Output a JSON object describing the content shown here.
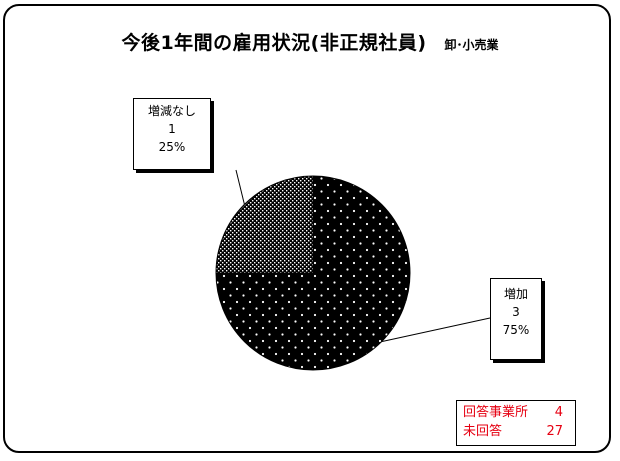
{
  "chart_data": {
    "type": "pie",
    "title": "今後1年間の雇用状況(非正規社員)",
    "subtitle": "卸･小売業",
    "slices": [
      {
        "label": "増加",
        "value": 3,
        "percent": "75%",
        "pattern": "dots"
      },
      {
        "label": "増減なし",
        "value": 1,
        "percent": "25%",
        "pattern": "checker"
      }
    ]
  },
  "stats": {
    "responded_label": "回答事業所",
    "responded_value": "4",
    "unanswered_label": "未回答",
    "unanswered_value": "27"
  },
  "colors": {
    "fill": "#000000",
    "pattern_dots": "#ffffff",
    "stats_text": "#e60012"
  }
}
